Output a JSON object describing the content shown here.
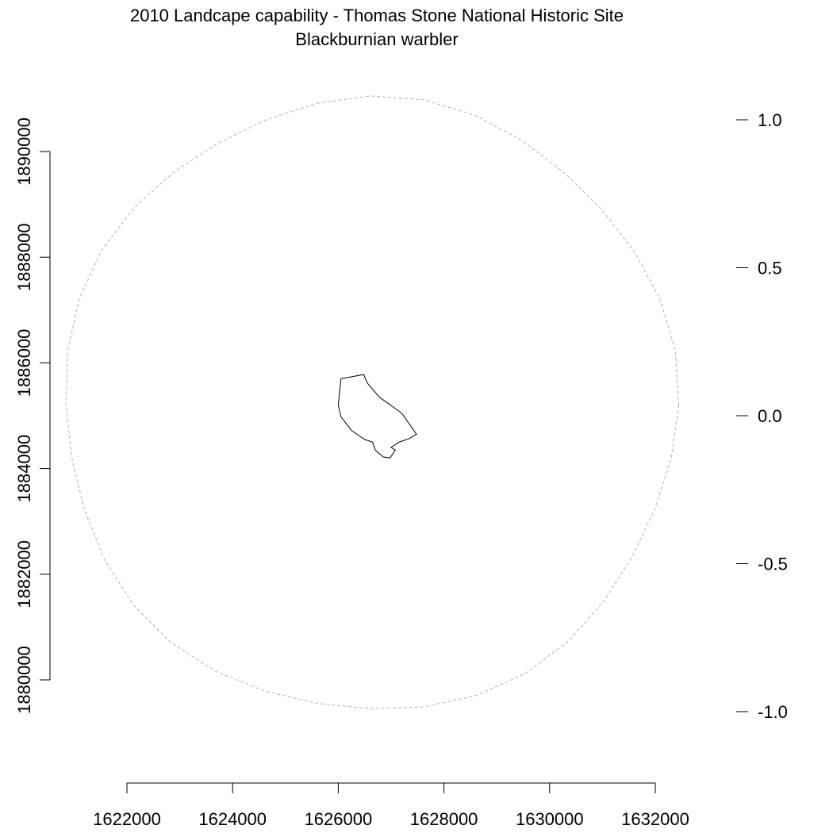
{
  "title": "2010 Landcape capability - Thomas Stone National Historic Site",
  "subtitle": "Blackburnian warbler",
  "colors": {
    "background": "#ffffff",
    "boundary": "#000000",
    "buffer_circle": "#b0b0b0",
    "axis": "#000000"
  },
  "chart_data": {
    "type": "map",
    "x_axis": {
      "range": [
        1621000,
        1633000
      ],
      "ticks": [
        1622000,
        1624000,
        1626000,
        1628000,
        1630000,
        1632000
      ],
      "tick_labels": [
        "1622000",
        "1624000",
        "1626000",
        "1628000",
        "1630000",
        "1632000"
      ]
    },
    "y_axis": {
      "range": [
        1878000,
        1892000
      ],
      "ticks": [
        1880000,
        1882000,
        1884000,
        1886000,
        1888000,
        1890000
      ],
      "tick_labels": [
        "1880000",
        "1882000",
        "1884000",
        "1886000",
        "1888000",
        "1890000"
      ]
    },
    "legend_axis": {
      "side": "right",
      "range": [
        -1.2,
        1.2
      ],
      "ticks": [
        1.0,
        0.5,
        0.0,
        -0.5,
        -1.0
      ],
      "tick_labels": [
        "1.0",
        "0.5",
        "0.0",
        "-0.5",
        "-1.0"
      ]
    },
    "buffer_circle": {
      "style": "dashed",
      "center": [
        1626600,
        1885200
      ],
      "radius": 5800
    },
    "park_boundary": {
      "style": "solid",
      "vertices": [
        [
          1626050,
          1885700
        ],
        [
          1626480,
          1885780
        ],
        [
          1626550,
          1885620
        ],
        [
          1626780,
          1885350
        ],
        [
          1627200,
          1885050
        ],
        [
          1627480,
          1884650
        ],
        [
          1627350,
          1884570
        ],
        [
          1627150,
          1884500
        ],
        [
          1627000,
          1884400
        ],
        [
          1627080,
          1884350
        ],
        [
          1626980,
          1884200
        ],
        [
          1626850,
          1884220
        ],
        [
          1626700,
          1884350
        ],
        [
          1626650,
          1884500
        ],
        [
          1626500,
          1884550
        ],
        [
          1626250,
          1884720
        ],
        [
          1626050,
          1884980
        ],
        [
          1626000,
          1885200
        ],
        [
          1626050,
          1885700
        ]
      ]
    }
  }
}
